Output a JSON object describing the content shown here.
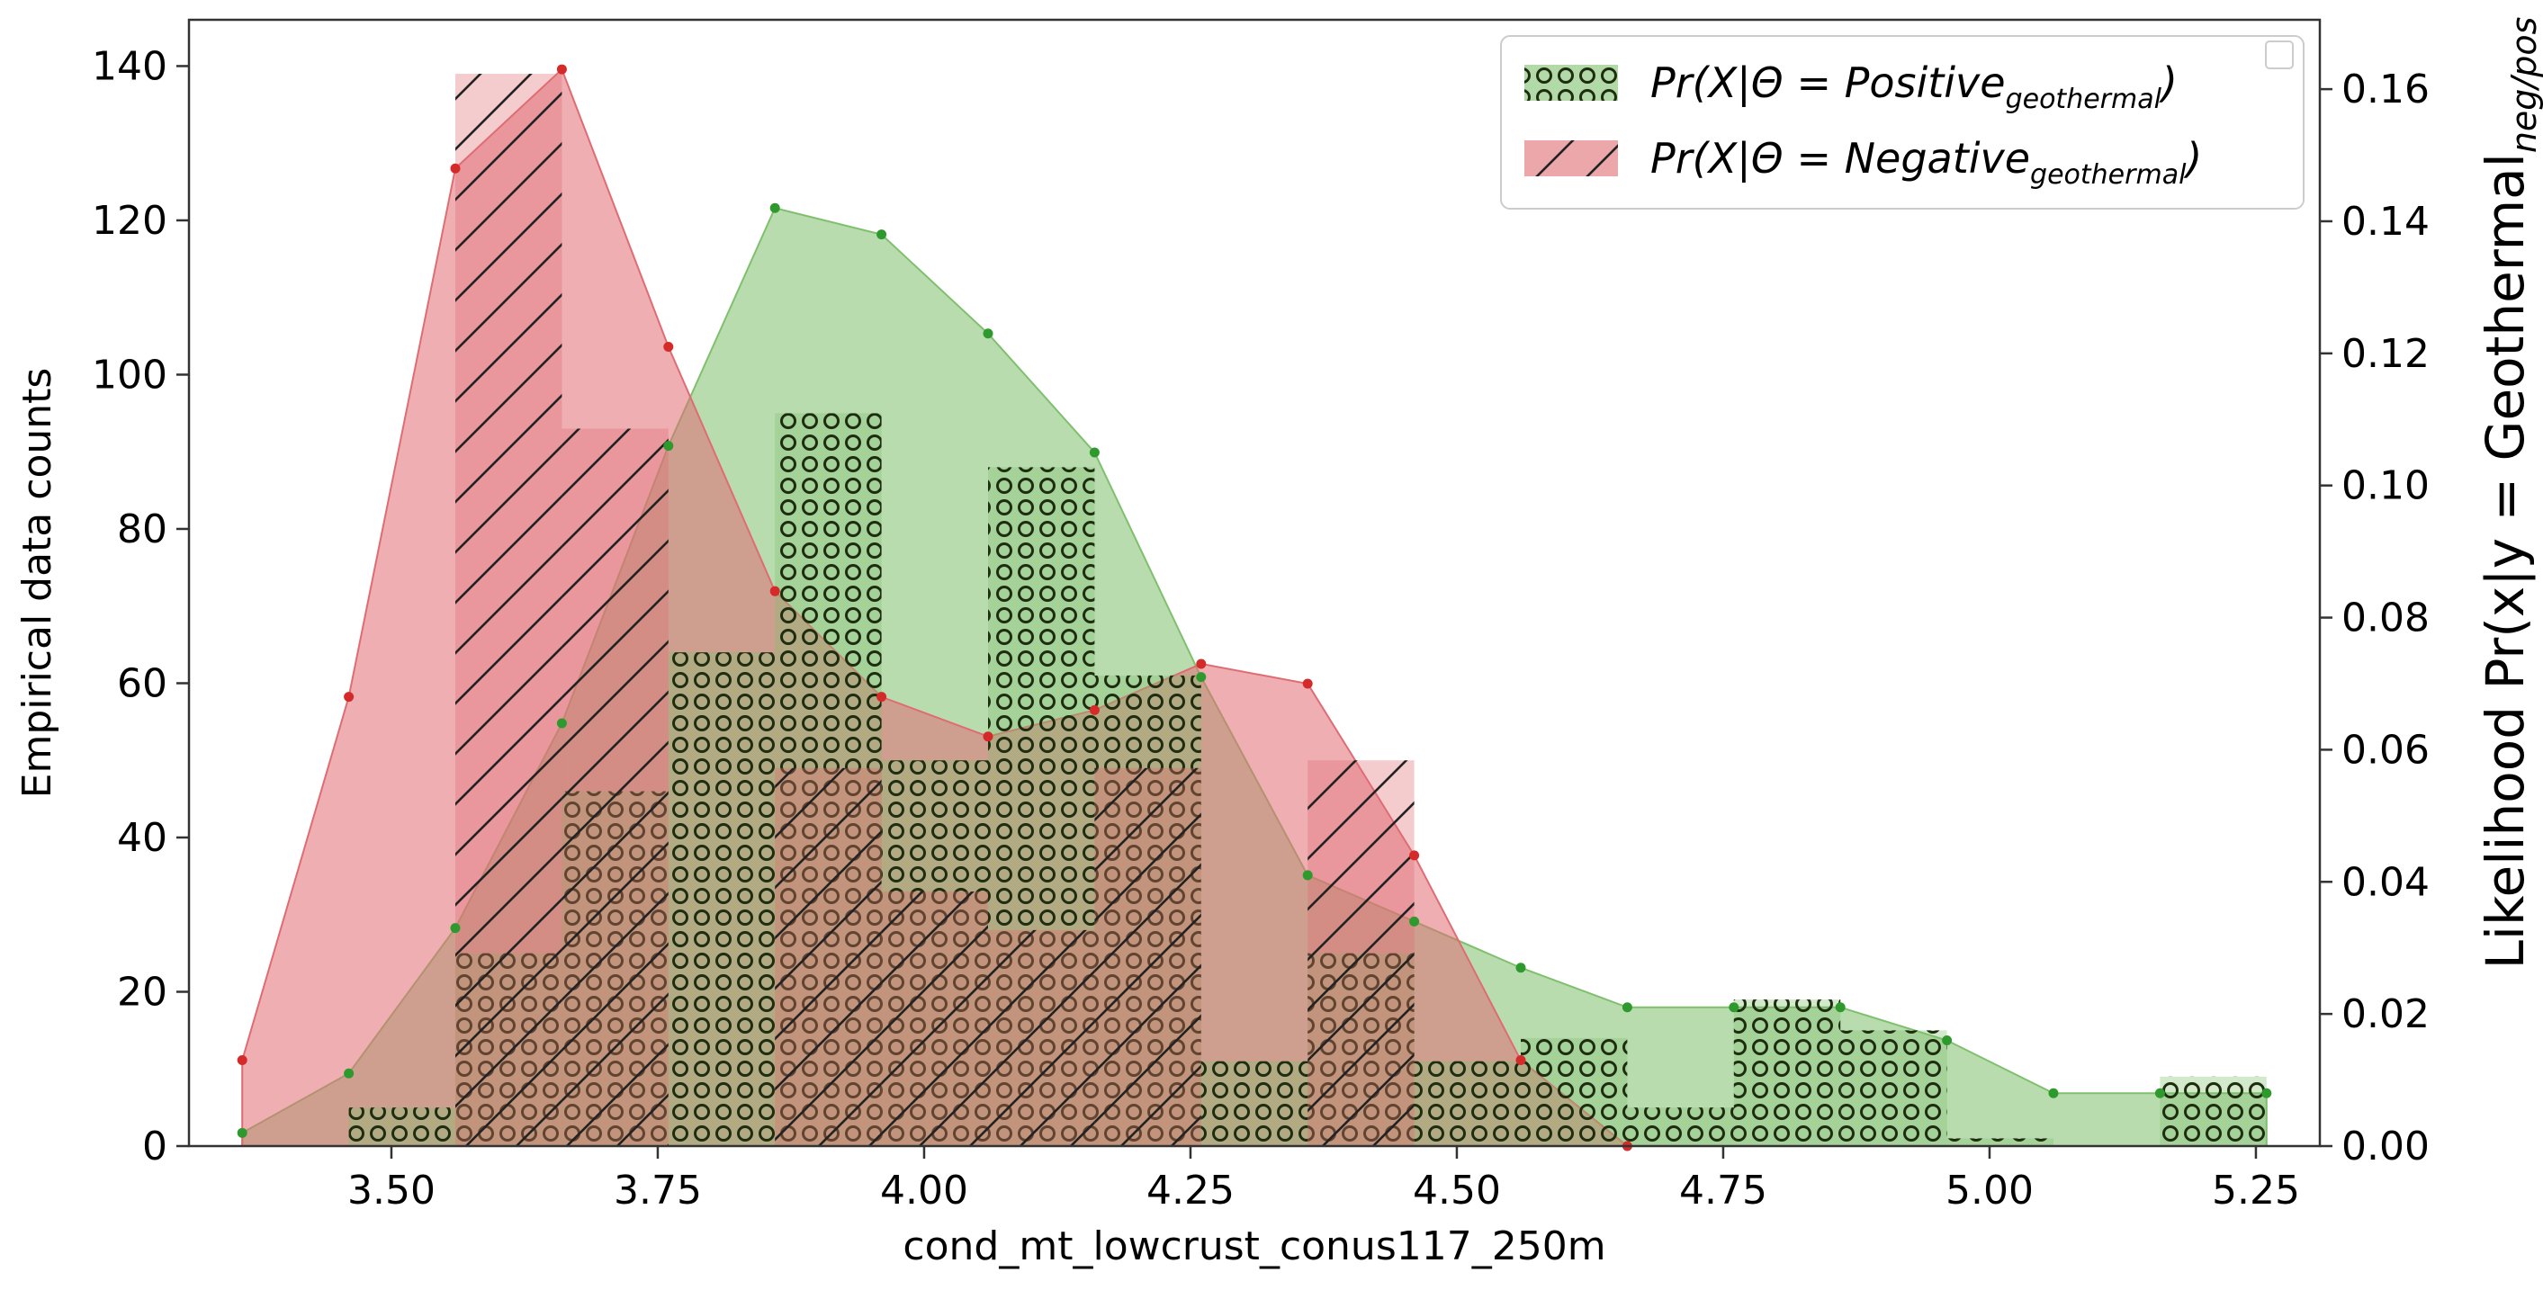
{
  "chart_data": {
    "type": "bar",
    "xlabel": "cond_mt_lowcrust_conus117_250m",
    "ylabel": "Empirical data counts",
    "ylabel_right": "Likelihood  Pr(x|y = Geothermal",
    "ylabel_right_sub": "neg/pos",
    "xlim": [
      3.31,
      5.31
    ],
    "ylim": [
      0,
      146
    ],
    "ylim_right": [
      0,
      0.1705
    ],
    "x_ticks": [
      "3.50",
      "3.75",
      "4.00",
      "4.25",
      "4.50",
      "4.75",
      "5.00",
      "5.25"
    ],
    "y_ticks": [
      "0",
      "20",
      "40",
      "60",
      "80",
      "100",
      "120",
      "140"
    ],
    "y_ticks_right": [
      "0.00",
      "0.02",
      "0.04",
      "0.06",
      "0.08",
      "0.10",
      "0.12",
      "0.14",
      "0.16"
    ],
    "bin_edges": [
      3.36,
      3.46,
      3.56,
      3.66,
      3.76,
      3.86,
      3.96,
      4.06,
      4.16,
      4.26,
      4.36,
      4.46,
      4.56,
      4.66,
      4.76,
      4.86,
      4.96,
      5.06,
      5.16,
      5.26
    ],
    "series": [
      {
        "name": "Pr(X|Θ = Positive",
        "name_sub": "geothermal",
        "name_close": ")",
        "hist_counts": [
          0,
          5,
          25,
          46,
          64,
          95,
          50,
          88,
          61,
          11,
          25,
          11,
          14,
          5,
          19,
          15,
          1,
          0,
          9
        ],
        "likelihood_x": [
          3.36,
          3.46,
          3.56,
          3.66,
          3.76,
          3.86,
          3.96,
          4.06,
          4.16,
          4.26,
          4.36,
          4.46,
          4.56,
          4.66,
          4.76,
          4.86,
          4.96,
          5.06,
          5.16,
          5.26
        ],
        "likelihood_y": [
          0.002,
          0.011,
          0.033,
          0.064,
          0.106,
          0.142,
          0.138,
          0.123,
          0.105,
          0.071,
          0.041,
          0.034,
          0.027,
          0.021,
          0.021,
          0.021,
          0.016,
          0.008,
          0.008,
          0.008
        ],
        "color": "#7fc06e",
        "marker_color": "#2e9a2e"
      },
      {
        "name": "Pr(X|Θ = Negative",
        "name_sub": "geothermal",
        "name_close": ")",
        "hist_counts": [
          0,
          0,
          139,
          93,
          0,
          49,
          33,
          28,
          49,
          0,
          50,
          0,
          0,
          0,
          0,
          0,
          0,
          0,
          0
        ],
        "likelihood_x": [
          3.36,
          3.46,
          3.56,
          3.66,
          3.76,
          3.86,
          3.96,
          4.06,
          4.16,
          4.26,
          4.36,
          4.46,
          4.56,
          4.66
        ],
        "likelihood_y": [
          0.013,
          0.068,
          0.148,
          0.163,
          0.121,
          0.084,
          0.068,
          0.062,
          0.066,
          0.073,
          0.07,
          0.044,
          0.013,
          0.0
        ],
        "color": "#e06c73",
        "marker_color": "#d42a2a"
      }
    ],
    "legend_position": "top-right",
    "grid": false
  }
}
